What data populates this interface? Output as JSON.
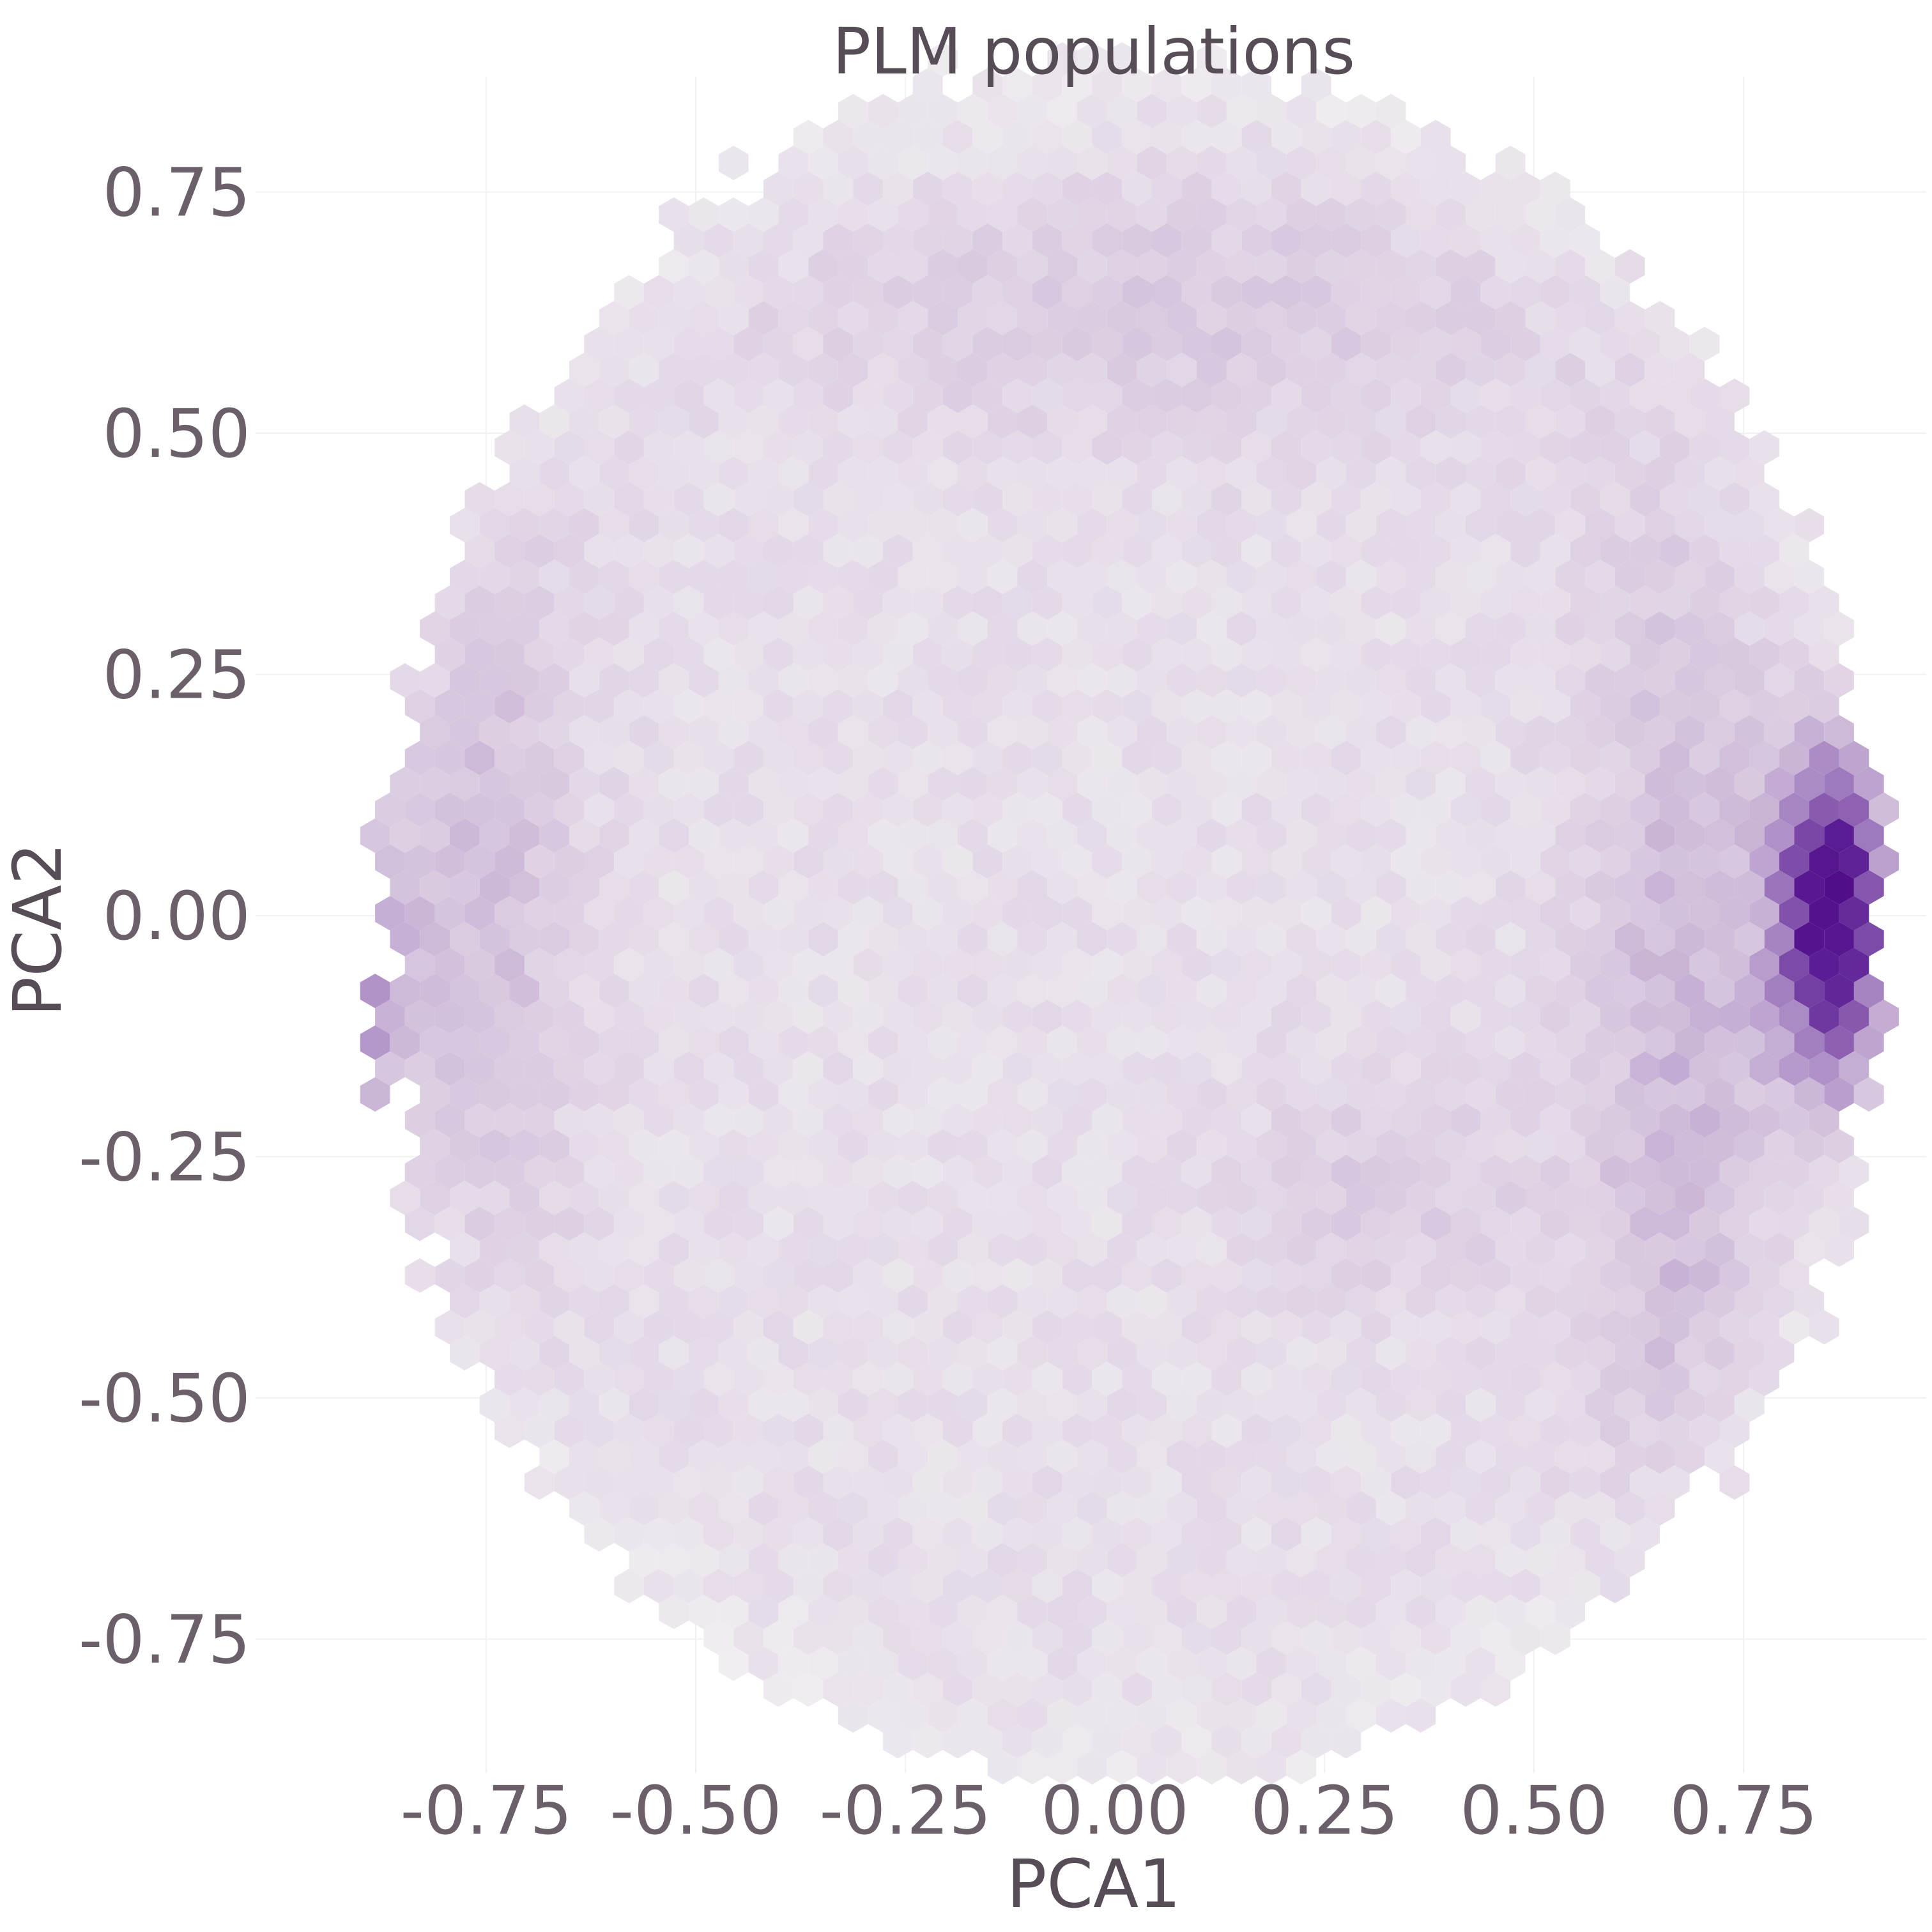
{
  "chart_data": {
    "type": "heatmap",
    "subtype": "hexbin",
    "title": "PLM populations",
    "xlabel": "PCA1",
    "ylabel": "PCA2",
    "xlim": [
      -1.0,
      0.98
    ],
    "ylim": [
      -0.9,
      0.88
    ],
    "xticks": [
      {
        "value": -0.75,
        "label": "-0.75"
      },
      {
        "value": -0.5,
        "label": "-0.50"
      },
      {
        "value": -0.25,
        "label": "-0.25"
      },
      {
        "value": 0.0,
        "label": "0.00"
      },
      {
        "value": 0.25,
        "label": "0.25"
      },
      {
        "value": 0.5,
        "label": "0.50"
      },
      {
        "value": 0.75,
        "label": "0.75"
      }
    ],
    "yticks": [
      {
        "value": 0.75,
        "label": "0.75"
      },
      {
        "value": 0.5,
        "label": "0.50"
      },
      {
        "value": 0.25,
        "label": "0.25"
      },
      {
        "value": 0.0,
        "label": "0.00"
      },
      {
        "value": -0.25,
        "label": "-0.25"
      },
      {
        "value": -0.5,
        "label": "-0.50"
      },
      {
        "value": -0.75,
        "label": "-0.75"
      }
    ],
    "grid": true,
    "legend": "none",
    "colormap": [
      "#f2f1f2",
      "#e6dde9",
      "#d6c6de",
      "#b79bcc",
      "#8a5cb0",
      "#5b1e94",
      "#4a0080",
      "#6a0a70"
    ],
    "density": {
      "region": {
        "shape": "disc",
        "center": [
          0.02,
          -0.01
        ],
        "radius": 0.9
      },
      "background_level": 0.13,
      "clusters": [
        {
          "name": "left ridge",
          "center": [
            -0.93,
            -0.07
          ],
          "sx": 0.05,
          "sy": 0.16,
          "peak": 0.9
        },
        {
          "name": "right ridge",
          "center": [
            0.87,
            0.0
          ],
          "sx": 0.05,
          "sy": 0.14,
          "peak": 0.95
        },
        {
          "name": "right arc",
          "center": [
            0.68,
            -0.15
          ],
          "sx": 0.09,
          "sy": 0.45,
          "peak": 0.2
        },
        {
          "name": "left arc",
          "center": [
            -0.78,
            0.05
          ],
          "sx": 0.09,
          "sy": 0.4,
          "peak": 0.2
        },
        {
          "name": "lower right patch",
          "center": [
            0.32,
            -0.28
          ],
          "sx": 0.12,
          "sy": 0.08,
          "peak": 0.12
        },
        {
          "name": "upper band",
          "center": [
            0.1,
            0.63
          ],
          "sx": 0.38,
          "sy": 0.1,
          "peak": 0.12
        }
      ]
    }
  }
}
